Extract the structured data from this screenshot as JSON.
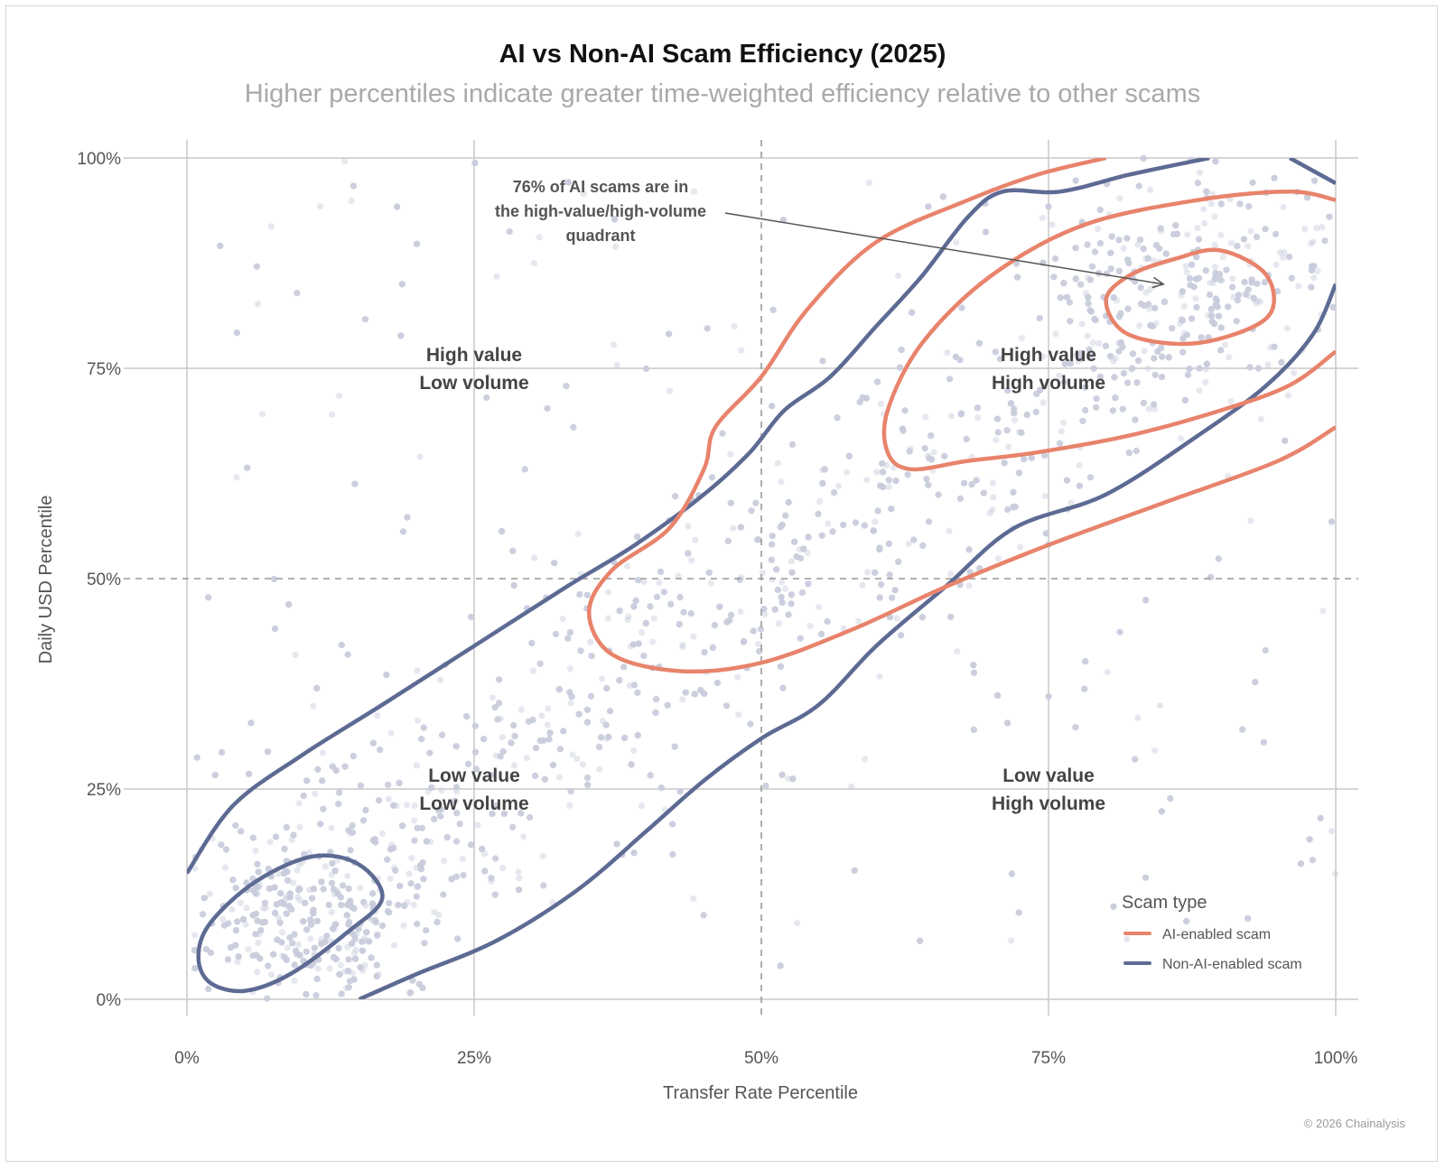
{
  "title": "AI vs Non-AI Scam Efficiency (2025)",
  "subtitle": "Higher percentiles indicate greater time-weighted efficiency relative to other scams",
  "footer": "© 2026 Chainalysis",
  "colors": {
    "ai": "#e8836c",
    "non_ai": "#5d6a93",
    "points": "#c7cbdc",
    "grid": "#c9c9c9",
    "text": "#444444"
  },
  "chart_data": {
    "type": "scatter",
    "xlabel": "Transfer Rate Percentile",
    "ylabel": "Daily USD Percentile",
    "xlim": [
      0,
      100
    ],
    "ylim": [
      0,
      100
    ],
    "x_ticks": [
      "0%",
      "25%",
      "50%",
      "75%",
      "100%"
    ],
    "y_ticks": [
      "0%",
      "25%",
      "50%",
      "75%",
      "100%"
    ],
    "reference_lines": {
      "x": 50,
      "y": 50,
      "style": "dashed"
    },
    "grid": true,
    "quadrant_labels": [
      {
        "x": 25,
        "y": 75,
        "lines": [
          "High value",
          "Low volume"
        ]
      },
      {
        "x": 75,
        "y": 75,
        "lines": [
          "High value",
          "High volume"
        ]
      },
      {
        "x": 25,
        "y": 25,
        "lines": [
          "Low value",
          "Low volume"
        ]
      },
      {
        "x": 75,
        "y": 25,
        "lines": [
          "Low value",
          "High volume"
        ]
      }
    ],
    "annotation": {
      "lines": [
        "76% of AI scams are in",
        "the high-value/high-volume",
        "quadrant"
      ],
      "arrow_to": [
        85,
        85
      ]
    },
    "legend": {
      "title": "Scam type",
      "position": "bottom-right",
      "items": [
        {
          "label": "AI-enabled scam",
          "series": "ai"
        },
        {
          "label": "Non-AI-enabled scam",
          "series": "non_ai"
        }
      ]
    },
    "contours": {
      "ai": [
        [
          [
            80,
            100
          ],
          [
            74,
            98
          ],
          [
            68,
            95
          ],
          [
            60,
            90
          ],
          [
            54,
            82
          ],
          [
            50,
            74
          ],
          [
            46,
            68
          ],
          [
            45,
            63
          ],
          [
            42,
            56
          ],
          [
            37,
            51
          ],
          [
            35,
            46
          ],
          [
            37,
            41
          ],
          [
            43,
            39
          ],
          [
            50,
            40
          ],
          [
            58,
            44
          ],
          [
            66,
            49
          ],
          [
            75,
            54
          ],
          [
            85,
            59
          ],
          [
            95,
            64
          ],
          [
            100,
            68
          ]
        ],
        [
          [
            100,
            77
          ],
          [
            96,
            73
          ],
          [
            90,
            70
          ],
          [
            82,
            67
          ],
          [
            74,
            65
          ],
          [
            68,
            64
          ],
          [
            63,
            63
          ],
          [
            61,
            65
          ],
          [
            61,
            70
          ],
          [
            64,
            78
          ],
          [
            70,
            86
          ],
          [
            78,
            92
          ],
          [
            88,
            95
          ],
          [
            96,
            96
          ],
          [
            100,
            95
          ]
        ],
        [
          [
            86,
            88
          ],
          [
            82,
            86
          ],
          [
            80,
            83
          ],
          [
            82,
            79
          ],
          [
            88,
            78
          ],
          [
            94,
            81
          ],
          [
            94,
            86
          ],
          [
            90,
            89
          ]
        ]
      ],
      "non_ai": [
        [
          [
            0,
            15
          ],
          [
            4,
            23
          ],
          [
            10,
            29
          ],
          [
            17,
            35
          ],
          [
            25,
            42
          ],
          [
            33,
            49
          ],
          [
            39,
            54
          ],
          [
            45,
            60
          ],
          [
            49,
            65
          ],
          [
            52,
            70
          ],
          [
            56,
            74
          ],
          [
            60,
            80
          ],
          [
            64,
            86
          ],
          [
            68,
            93
          ],
          [
            71,
            96
          ],
          [
            76,
            96
          ],
          [
            82,
            98
          ],
          [
            89,
            100
          ]
        ],
        [
          [
            96,
            100
          ],
          [
            100,
            97
          ]
        ],
        [
          [
            15,
            0
          ],
          [
            20,
            3
          ],
          [
            27,
            7
          ],
          [
            34,
            13
          ],
          [
            40,
            20
          ],
          [
            45,
            26
          ],
          [
            50,
            31
          ],
          [
            55,
            35
          ],
          [
            60,
            42
          ],
          [
            66,
            49
          ],
          [
            72,
            56
          ],
          [
            80,
            60
          ],
          [
            88,
            67
          ],
          [
            94,
            73
          ],
          [
            98,
            79
          ],
          [
            100,
            85
          ]
        ],
        [
          [
            2,
            2
          ],
          [
            5,
            1
          ],
          [
            9,
            3
          ],
          [
            14,
            8
          ],
          [
            17,
            12
          ],
          [
            15,
            16
          ],
          [
            11,
            17
          ],
          [
            6,
            14
          ],
          [
            2,
            9
          ],
          [
            1,
            5
          ]
        ]
      ]
    },
    "points": {
      "count": 4200,
      "distribution": "dense along diagonal from (5,10) to (90,85), sparse in off-diagonal quadrants"
    }
  }
}
